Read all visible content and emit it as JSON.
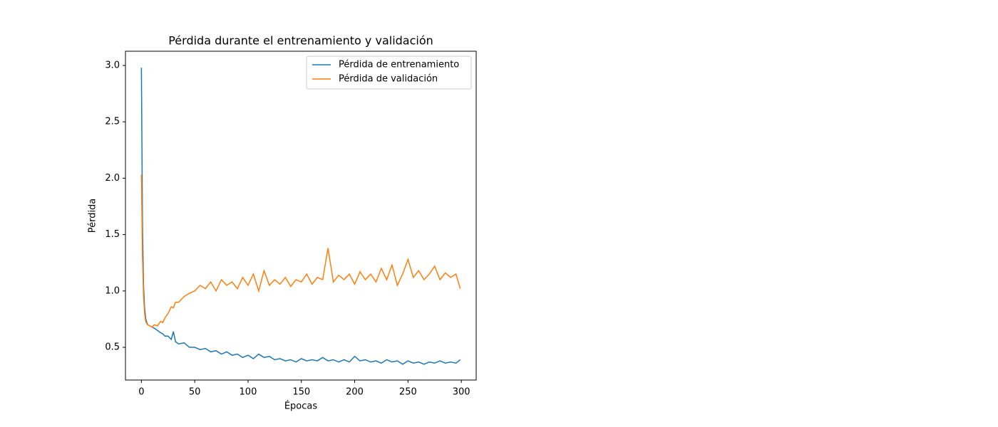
{
  "chart_data": {
    "type": "line",
    "title": "Pérdida durante el entrenamiento y validación",
    "x_label": "Épocas",
    "y_label": "Pérdida",
    "x": [
      0,
      1,
      2,
      3,
      4,
      5,
      6,
      8,
      10,
      12,
      15,
      18,
      20,
      22,
      25,
      28,
      30,
      32,
      35,
      40,
      45,
      50,
      55,
      60,
      65,
      70,
      75,
      80,
      85,
      90,
      95,
      100,
      105,
      110,
      115,
      120,
      125,
      130,
      135,
      140,
      145,
      150,
      155,
      160,
      165,
      170,
      175,
      180,
      185,
      190,
      195,
      200,
      205,
      210,
      215,
      220,
      225,
      230,
      235,
      240,
      245,
      250,
      255,
      260,
      265,
      270,
      275,
      280,
      285,
      290,
      295,
      299
    ],
    "series": [
      {
        "name": "Pérdida de entrenamiento",
        "color": "#1f77b4",
        "values": [
          2.98,
          1.6,
          1.05,
          0.85,
          0.76,
          0.72,
          0.7,
          0.69,
          0.68,
          0.67,
          0.65,
          0.63,
          0.62,
          0.6,
          0.6,
          0.57,
          0.64,
          0.55,
          0.53,
          0.54,
          0.5,
          0.5,
          0.48,
          0.49,
          0.46,
          0.47,
          0.44,
          0.46,
          0.43,
          0.44,
          0.41,
          0.43,
          0.4,
          0.44,
          0.41,
          0.42,
          0.39,
          0.4,
          0.38,
          0.39,
          0.37,
          0.4,
          0.38,
          0.39,
          0.38,
          0.41,
          0.38,
          0.39,
          0.37,
          0.39,
          0.37,
          0.42,
          0.38,
          0.39,
          0.37,
          0.38,
          0.36,
          0.39,
          0.37,
          0.38,
          0.35,
          0.38,
          0.36,
          0.37,
          0.35,
          0.37,
          0.36,
          0.38,
          0.36,
          0.37,
          0.36,
          0.39
        ]
      },
      {
        "name": "Pérdida de validación",
        "color": "#ff7f0e",
        "values": [
          2.03,
          1.3,
          0.95,
          0.8,
          0.73,
          0.71,
          0.7,
          0.69,
          0.68,
          0.7,
          0.69,
          0.73,
          0.72,
          0.76,
          0.8,
          0.86,
          0.85,
          0.9,
          0.9,
          0.95,
          0.98,
          1.0,
          1.05,
          1.02,
          1.08,
          1.0,
          1.1,
          1.05,
          1.08,
          1.02,
          1.12,
          1.05,
          1.15,
          1.0,
          1.18,
          1.05,
          1.1,
          1.06,
          1.12,
          1.04,
          1.1,
          1.08,
          1.15,
          1.06,
          1.12,
          1.1,
          1.38,
          1.08,
          1.14,
          1.1,
          1.15,
          1.06,
          1.17,
          1.1,
          1.15,
          1.08,
          1.2,
          1.1,
          1.23,
          1.05,
          1.15,
          1.28,
          1.12,
          1.18,
          1.1,
          1.15,
          1.22,
          1.1,
          1.16,
          1.12,
          1.15,
          1.02
        ]
      }
    ],
    "xlim": [
      -14.95,
      313.95
    ],
    "xticks": [
      0,
      50,
      100,
      150,
      200,
      250,
      300
    ],
    "ylim": [
      0.21,
      3.126
    ],
    "yticks": [
      0.5,
      {
        "value": 1,
        "label": "1.0"
      },
      1.5,
      {
        "value": 2,
        "label": "2.0"
      },
      2.5,
      {
        "value": 3,
        "label": "3.0"
      }
    ],
    "legend": "upper right",
    "grid": false
  }
}
